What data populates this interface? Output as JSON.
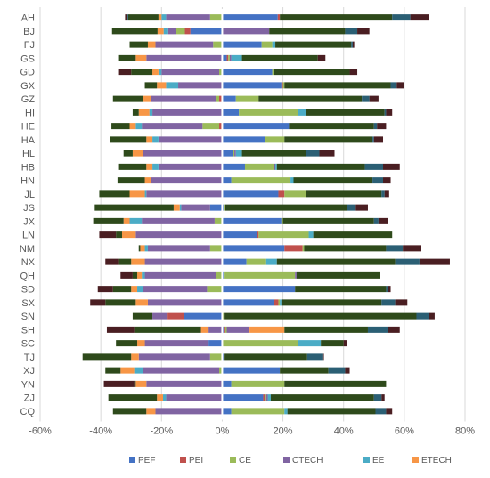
{
  "chart_data": {
    "type": "bar",
    "orientation": "horizontal",
    "stacked": "diverging",
    "title": "",
    "xlabel": "",
    "ylabel": "",
    "xlim": [
      -0.6,
      0.8
    ],
    "xticks": [
      -0.6,
      -0.4,
      -0.2,
      0,
      0.2,
      0.4,
      0.6,
      0.8
    ],
    "xtick_labels": [
      "-60%",
      "-40%",
      "-20%",
      "0%",
      "20%",
      "40%",
      "60%",
      "80%"
    ],
    "grid": "vertical",
    "legend_position": "bottom",
    "categories": [
      "AH",
      "BJ",
      "FJ",
      "GS",
      "GD",
      "GX",
      "GZ",
      "HI",
      "HE",
      "HA",
      "HL",
      "HB",
      "HN",
      "JL",
      "JS",
      "JX",
      "LN",
      "NM",
      "NX",
      "QH",
      "SD",
      "SX",
      "SN",
      "SH",
      "SC",
      "TJ",
      "XJ",
      "YN",
      "ZJ",
      "CQ"
    ],
    "legend_items": [
      {
        "name": "PEF",
        "color": "#4472C4"
      },
      {
        "name": "PEI",
        "color": "#C0504D"
      },
      {
        "name": "CE",
        "color": "#9BBB59"
      },
      {
        "name": "CTECH",
        "color": "#8064A2"
      },
      {
        "name": "EE",
        "color": "#4BACC6"
      },
      {
        "name": "ETECH",
        "color": "#F79646"
      }
    ],
    "stack_order": [
      "PEF",
      "PEI",
      "CE",
      "CTECH",
      "EE",
      "ETECH",
      "C7",
      "C8",
      "C9"
    ],
    "series": [
      {
        "key": "PEF",
        "color": "#4472C4",
        "values": [
          [
            0,
            0.183
          ],
          [
            -0.105,
            0
          ],
          [
            0,
            0.13
          ],
          [
            0,
            0.015
          ],
          [
            0,
            0.165
          ],
          [
            0,
            0.195
          ],
          [
            0,
            0.045
          ],
          [
            0,
            0.055
          ],
          [
            0,
            0.22
          ],
          [
            0,
            0.14
          ],
          [
            0,
            0.035
          ],
          [
            0,
            0.075
          ],
          [
            0,
            0.03
          ],
          [
            0,
            0.185
          ],
          [
            -0.04,
            0.005
          ],
          [
            0,
            0.195
          ],
          [
            0,
            0.115
          ],
          [
            0,
            0.205
          ],
          [
            0,
            0.08
          ],
          [
            0,
            0.005
          ],
          [
            0,
            0.24
          ],
          [
            0,
            0.17
          ],
          [
            -0.125,
            0
          ],
          [
            0,
            0.005
          ],
          [
            -0.045,
            0
          ],
          [
            0,
            0.005
          ],
          [
            0,
            0.19
          ],
          [
            0,
            0.03
          ],
          [
            0,
            0.135
          ],
          [
            0,
            0.03
          ]
        ]
      },
      {
        "key": "PEI",
        "color": "#C0504D",
        "values": [
          [
            0,
            0.007
          ],
          [
            -0.018,
            0
          ],
          [
            0,
            0
          ],
          [
            0,
            0.005
          ],
          [
            0,
            0
          ],
          [
            0,
            0.005
          ],
          [
            -0.01,
            0
          ],
          [
            0,
            0
          ],
          [
            -0.01,
            0
          ],
          [
            0,
            0
          ],
          [
            0,
            0
          ],
          [
            0,
            0
          ],
          [
            0,
            0
          ],
          [
            0,
            0.02
          ],
          [
            0,
            0
          ],
          [
            0,
            0
          ],
          [
            0,
            0.005
          ],
          [
            0,
            0.06
          ],
          [
            0,
            0
          ],
          [
            0,
            0
          ],
          [
            0,
            0
          ],
          [
            0,
            0.015
          ],
          [
            -0.055,
            0
          ],
          [
            0,
            0.005
          ],
          [
            0,
            0
          ],
          [
            0,
            0
          ],
          [
            0,
            0
          ],
          [
            0,
            0
          ],
          [
            0,
            0.005
          ],
          [
            0,
            0
          ]
        ]
      },
      {
        "key": "CE",
        "color": "#9BBB59",
        "values": [
          [
            -0.04,
            0
          ],
          [
            -0.03,
            0
          ],
          [
            -0.03,
            0.035
          ],
          [
            0,
            0.005
          ],
          [
            -0.01,
            0.005
          ],
          [
            0,
            0.005
          ],
          [
            -0.01,
            0.075
          ],
          [
            0,
            0.195
          ],
          [
            -0.055,
            0
          ],
          [
            0,
            0.065
          ],
          [
            0,
            0.005
          ],
          [
            0,
            0.095
          ],
          [
            0,
            0.195
          ],
          [
            0,
            0.07
          ],
          [
            0,
            0.005
          ],
          [
            -0.025,
            0.005
          ],
          [
            0,
            0.165
          ],
          [
            -0.04,
            0.005
          ],
          [
            0,
            0.065
          ],
          [
            -0.02,
            0.235
          ],
          [
            -0.05,
            0
          ],
          [
            0,
            0.005
          ],
          [
            0,
            0.005
          ],
          [
            0,
            0.005
          ],
          [
            0,
            0.25
          ],
          [
            -0.04,
            0
          ],
          [
            -0.01,
            0
          ],
          [
            0,
            0.175
          ],
          [
            0,
            0.005
          ],
          [
            0,
            0.175
          ]
        ]
      },
      {
        "key": "CTECH",
        "color": "#8064A2",
        "values": [
          [
            -0.145,
            0
          ],
          [
            -0.025,
            0.155
          ],
          [
            -0.19,
            0
          ],
          [
            -0.25,
            0.005
          ],
          [
            -0.19,
            0
          ],
          [
            -0.145,
            0
          ],
          [
            -0.215,
            0
          ],
          [
            -0.23,
            0
          ],
          [
            -0.2,
            0
          ],
          [
            -0.21,
            0
          ],
          [
            -0.26,
            0.005
          ],
          [
            -0.21,
            0.005
          ],
          [
            -0.235,
            0
          ],
          [
            -0.25,
            0
          ],
          [
            -0.095,
            0
          ],
          [
            -0.24,
            0
          ],
          [
            -0.285,
            0
          ],
          [
            -0.205,
            0
          ],
          [
            -0.255,
            0
          ],
          [
            -0.235,
            0.005
          ],
          [
            -0.21,
            0
          ],
          [
            -0.245,
            0
          ],
          [
            -0.05,
            0
          ],
          [
            -0.045,
            0.075
          ],
          [
            -0.21,
            0
          ],
          [
            -0.235,
            0
          ],
          [
            -0.25,
            0
          ],
          [
            -0.25,
            0
          ],
          [
            -0.185,
            0.005
          ],
          [
            -0.22,
            0
          ]
        ]
      },
      {
        "key": "EE",
        "color": "#4BACC6",
        "values": [
          [
            -0.015,
            0
          ],
          [
            -0.015,
            0
          ],
          [
            0,
            0.01
          ],
          [
            0,
            0.035
          ],
          [
            -0.01,
            0
          ],
          [
            -0.04,
            0
          ],
          [
            0,
            0
          ],
          [
            -0.01,
            0.025
          ],
          [
            -0.02,
            0
          ],
          [
            -0.02,
            0
          ],
          [
            0,
            0.02
          ],
          [
            -0.02,
            0.005
          ],
          [
            0,
            0.01
          ],
          [
            -0.005,
            0
          ],
          [
            -0.005,
            0
          ],
          [
            -0.04,
            0
          ],
          [
            0,
            0.015
          ],
          [
            -0.01,
            0
          ],
          [
            0,
            0.035
          ],
          [
            -0.01,
            0
          ],
          [
            -0.02,
            0
          ],
          [
            0,
            0.005
          ],
          [
            0,
            0
          ],
          [
            0,
            0
          ],
          [
            0,
            0.075
          ],
          [
            0,
            0
          ],
          [
            -0.03,
            0
          ],
          [
            0,
            0
          ],
          [
            -0.01,
            0.01
          ],
          [
            0,
            0.01
          ]
        ]
      },
      {
        "key": "ETECH",
        "color": "#F79646",
        "values": [
          [
            -0.01,
            0
          ],
          [
            -0.02,
            0
          ],
          [
            -0.025,
            0
          ],
          [
            -0.035,
            0
          ],
          [
            -0.02,
            0
          ],
          [
            -0.03,
            0
          ],
          [
            -0.025,
            0
          ],
          [
            -0.035,
            0
          ],
          [
            -0.02,
            0
          ],
          [
            -0.02,
            0
          ],
          [
            -0.035,
            0
          ],
          [
            -0.02,
            0
          ],
          [
            -0.02,
            0
          ],
          [
            -0.05,
            0
          ],
          [
            -0.02,
            0
          ],
          [
            -0.02,
            0
          ],
          [
            -0.045,
            0
          ],
          [
            -0.015,
            0
          ],
          [
            -0.045,
            0
          ],
          [
            -0.015,
            0
          ],
          [
            -0.02,
            0
          ],
          [
            -0.04,
            0
          ],
          [
            0,
            0
          ],
          [
            -0.025,
            0.115
          ],
          [
            -0.025,
            0
          ],
          [
            -0.025,
            0
          ],
          [
            -0.045,
            0
          ],
          [
            -0.035,
            0
          ],
          [
            -0.02,
            0
          ],
          [
            -0.03,
            0
          ]
        ]
      },
      {
        "key": "C7",
        "color": "#2E4A1B",
        "values": [
          [
            -0.1,
            0.37
          ],
          [
            -0.15,
            0.25
          ],
          [
            -0.06,
            0.25
          ],
          [
            -0.055,
            0.25
          ],
          [
            -0.07,
            0.25
          ],
          [
            -0.04,
            0.35
          ],
          [
            -0.1,
            0.34
          ],
          [
            -0.02,
            0.26
          ],
          [
            -0.06,
            0.28
          ],
          [
            -0.12,
            0.29
          ],
          [
            -0.03,
            0.21
          ],
          [
            -0.09,
            0.29
          ],
          [
            -0.09,
            0.26
          ],
          [
            -0.1,
            0.25
          ],
          [
            -0.26,
            0.4
          ],
          [
            -0.1,
            0.3
          ],
          [
            -0.02,
            0.26
          ],
          [
            -0.005,
            0.27
          ],
          [
            -0.04,
            0.39
          ],
          [
            -0.015,
            0.275
          ],
          [
            -0.06,
            0.3
          ],
          [
            -0.1,
            0.33
          ],
          [
            -0.065,
            0.635
          ],
          [
            -0.22,
            0.275
          ],
          [
            -0.07,
            0.075
          ],
          [
            -0.16,
            0.275
          ],
          [
            -0.05,
            0.16
          ],
          [
            -0.005,
            0.335
          ],
          [
            -0.16,
            0.34
          ],
          [
            -0.11,
            0.29
          ]
        ]
      },
      {
        "key": "C8",
        "color": "#2B5F74",
        "values": [
          [
            -0.005,
            0.06
          ],
          [
            0,
            0.04
          ],
          [
            0,
            0.005
          ],
          [
            0,
            0
          ],
          [
            0,
            0
          ],
          [
            0,
            0.02
          ],
          [
            0,
            0.025
          ],
          [
            0,
            0.005
          ],
          [
            0,
            0.01
          ],
          [
            0,
            0.005
          ],
          [
            0,
            0.045
          ],
          [
            0,
            0.06
          ],
          [
            0,
            0.035
          ],
          [
            0,
            0.01
          ],
          [
            0,
            0.03
          ],
          [
            0,
            0.015
          ],
          [
            0,
            0
          ],
          [
            0,
            0.055
          ],
          [
            0,
            0.08
          ],
          [
            0,
            0
          ],
          [
            0,
            0.005
          ],
          [
            0,
            0.045
          ],
          [
            0,
            0.04
          ],
          [
            0,
            0.065
          ],
          [
            0,
            0
          ],
          [
            0,
            0.05
          ],
          [
            0,
            0.055
          ],
          [
            0,
            0
          ],
          [
            0,
            0.025
          ],
          [
            0,
            0.035
          ]
        ]
      },
      {
        "key": "C9",
        "color": "#4A1E22",
        "values": [
          [
            -0.005,
            0.06
          ],
          [
            0,
            0.04
          ],
          [
            0,
            0.005
          ],
          [
            0,
            0.025
          ],
          [
            -0.04,
            0.025
          ],
          [
            0,
            0.025
          ],
          [
            0,
            0.03
          ],
          [
            0,
            0.02
          ],
          [
            0,
            0.03
          ],
          [
            0,
            0.03
          ],
          [
            0,
            0.05
          ],
          [
            0,
            0.055
          ],
          [
            0,
            0.025
          ],
          [
            0,
            0.015
          ],
          [
            0,
            0.04
          ],
          [
            0,
            0.03
          ],
          [
            -0.055,
            0
          ],
          [
            0,
            0.06
          ],
          [
            -0.045,
            0.1
          ],
          [
            -0.04,
            0
          ],
          [
            -0.05,
            0.01
          ],
          [
            -0.05,
            0.04
          ],
          [
            0,
            0.02
          ],
          [
            -0.09,
            0.04
          ],
          [
            0,
            0.01
          ],
          [
            0,
            0.005
          ],
          [
            0,
            0.015
          ],
          [
            -0.1,
            0
          ],
          [
            0,
            0.01
          ],
          [
            0,
            0.02
          ]
        ]
      }
    ]
  }
}
